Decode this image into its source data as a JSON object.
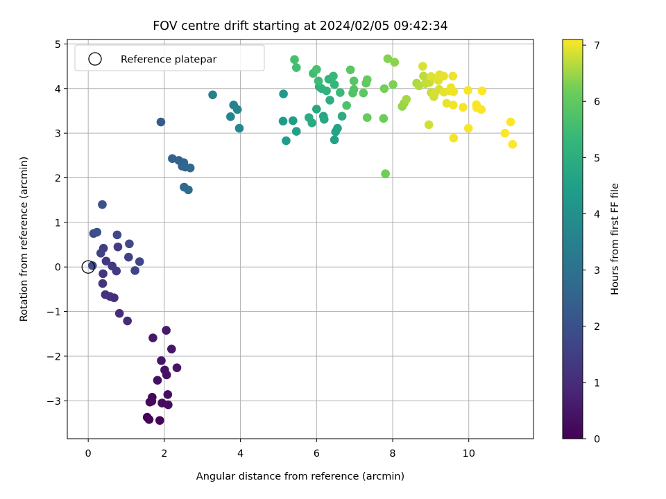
{
  "chart_data": {
    "type": "scatter",
    "title": "FOV centre drift starting at 2024/02/05 09:42:34",
    "xlabel": "Angular distance from reference (arcmin)",
    "ylabel": "Rotation from reference (arcmin)",
    "xlim": [
      -0.55,
      11.7
    ],
    "ylim": [
      -3.85,
      5.1
    ],
    "x_ticks": [
      0,
      2,
      4,
      6,
      8,
      10
    ],
    "y_ticks": [
      -3,
      -2,
      -1,
      0,
      1,
      2,
      3,
      4,
      5
    ],
    "grid": true,
    "legend": {
      "placement": "top-left",
      "entries": [
        "Reference platepar"
      ]
    },
    "reference": {
      "x": 0,
      "y": 0
    },
    "colorbar": {
      "label": "Hours from first FF file",
      "range": [
        0,
        7.1
      ],
      "ticks": [
        0,
        1,
        2,
        3,
        4,
        5,
        6,
        7
      ],
      "colormap": "viridis"
    },
    "points": [
      [
        1.55,
        -3.37,
        0.05
      ],
      [
        1.6,
        -3.42,
        0.08
      ],
      [
        1.88,
        -3.44,
        0.12
      ],
      [
        1.62,
        -3.03,
        0.15
      ],
      [
        1.68,
        -2.92,
        0.18
      ],
      [
        1.67,
        -3.01,
        0.2
      ],
      [
        1.94,
        -3.05,
        0.24
      ],
      [
        2.1,
        -3.09,
        0.27
      ],
      [
        2.09,
        -2.86,
        0.3
      ],
      [
        1.82,
        -2.54,
        0.33
      ],
      [
        2.06,
        -2.42,
        0.36
      ],
      [
        2.01,
        -2.31,
        0.4
      ],
      [
        2.33,
        -2.26,
        0.43
      ],
      [
        1.92,
        -2.1,
        0.46
      ],
      [
        2.19,
        -1.84,
        0.49
      ],
      [
        1.7,
        -1.59,
        0.52
      ],
      [
        2.05,
        -1.42,
        0.55
      ],
      [
        1.03,
        -1.21,
        0.95
      ],
      [
        0.82,
        -1.04,
        1.0
      ],
      [
        0.68,
        -0.69,
        1.05
      ],
      [
        0.57,
        -0.66,
        1.1
      ],
      [
        0.45,
        -0.62,
        1.15
      ],
      [
        0.38,
        -0.37,
        1.2
      ],
      [
        0.39,
        -0.15,
        1.25
      ],
      [
        0.47,
        0.13,
        1.3
      ],
      [
        0.63,
        0.02,
        1.35
      ],
      [
        0.74,
        -0.09,
        1.4
      ],
      [
        0.78,
        0.45,
        1.45
      ],
      [
        0.4,
        0.42,
        1.5
      ],
      [
        0.33,
        0.31,
        1.55
      ],
      [
        1.06,
        0.22,
        1.6
      ],
      [
        1.23,
        -0.08,
        1.65
      ],
      [
        1.35,
        0.12,
        1.7
      ],
      [
        0.76,
        0.72,
        1.75
      ],
      [
        1.08,
        0.52,
        1.8
      ],
      [
        0.11,
        0.03,
        1.85
      ],
      [
        0.14,
        0.75,
        1.9
      ],
      [
        0.23,
        0.78,
        1.95
      ],
      [
        0.37,
        1.4,
        2.0
      ],
      [
        1.91,
        3.25,
        2.3
      ],
      [
        2.21,
        2.43,
        2.45
      ],
      [
        2.38,
        2.39,
        2.5
      ],
      [
        2.51,
        2.34,
        2.55
      ],
      [
        2.47,
        2.26,
        2.6
      ],
      [
        2.55,
        2.24,
        2.63
      ],
      [
        2.68,
        2.22,
        2.66
      ],
      [
        2.52,
        1.79,
        2.7
      ],
      [
        2.63,
        1.73,
        2.75
      ],
      [
        3.27,
        3.86,
        3.5
      ],
      [
        3.82,
        3.63,
        3.55
      ],
      [
        3.92,
        3.53,
        3.6
      ],
      [
        3.74,
        3.37,
        3.65
      ],
      [
        3.97,
        3.11,
        3.7
      ],
      [
        5.13,
        3.88,
        4.3
      ],
      [
        5.12,
        3.27,
        4.35
      ],
      [
        5.2,
        2.83,
        4.4
      ],
      [
        5.38,
        3.28,
        4.45
      ],
      [
        5.47,
        3.04,
        4.5
      ],
      [
        6.47,
        2.85,
        4.55
      ],
      [
        6.5,
        3.03,
        4.6
      ],
      [
        6.55,
        3.11,
        4.65
      ],
      [
        6.18,
        3.38,
        4.7
      ],
      [
        6.2,
        3.31,
        4.75
      ],
      [
        6.0,
        3.54,
        4.8
      ],
      [
        5.88,
        3.23,
        4.85
      ],
      [
        5.8,
        3.35,
        4.9
      ],
      [
        6.67,
        3.38,
        4.95
      ],
      [
        6.35,
        3.74,
        5.0
      ],
      [
        6.07,
        4.04,
        5.1
      ],
      [
        6.13,
        4.0,
        5.15
      ],
      [
        6.26,
        3.95,
        5.2
      ],
      [
        6.32,
        4.21,
        5.25
      ],
      [
        6.47,
        4.09,
        5.3
      ],
      [
        6.44,
        4.28,
        5.35
      ],
      [
        6.62,
        3.91,
        5.4
      ],
      [
        6.05,
        4.17,
        5.45
      ],
      [
        5.91,
        4.34,
        5.5
      ],
      [
        5.47,
        4.47,
        5.55
      ],
      [
        5.42,
        4.65,
        5.6
      ],
      [
        6.0,
        4.43,
        5.65
      ],
      [
        6.79,
        3.62,
        5.7
      ],
      [
        6.95,
        3.9,
        5.75
      ],
      [
        6.98,
        3.98,
        5.8
      ],
      [
        6.98,
        4.17,
        5.85
      ],
      [
        6.89,
        4.42,
        5.9
      ],
      [
        7.23,
        3.9,
        5.95
      ],
      [
        7.3,
        4.12,
        6.0
      ],
      [
        7.33,
        4.2,
        6.05
      ],
      [
        7.33,
        3.35,
        6.1
      ],
      [
        7.76,
        3.33,
        6.15
      ],
      [
        7.81,
        2.09,
        6.2
      ],
      [
        7.78,
        4.0,
        6.25
      ],
      [
        8.01,
        4.09,
        6.3
      ],
      [
        7.87,
        4.67,
        6.35
      ],
      [
        8.05,
        4.59,
        6.4
      ],
      [
        8.25,
        3.6,
        6.45
      ],
      [
        8.3,
        3.67,
        6.5
      ],
      [
        8.36,
        3.76,
        6.55
      ],
      [
        8.63,
        4.12,
        6.6
      ],
      [
        8.69,
        4.06,
        6.65
      ],
      [
        8.81,
        4.28,
        6.7
      ],
      [
        8.86,
        4.11,
        6.73
      ],
      [
        8.97,
        4.14,
        6.76
      ],
      [
        9.01,
        3.91,
        6.78
      ],
      [
        9.08,
        3.82,
        6.8
      ],
      [
        8.95,
        3.19,
        6.82
      ],
      [
        9.1,
        3.88,
        6.84
      ],
      [
        9.22,
        3.98,
        6.86
      ],
      [
        8.79,
        4.5,
        6.88
      ],
      [
        9.01,
        4.27,
        6.9
      ],
      [
        9.2,
        4.18,
        6.92
      ],
      [
        9.23,
        4.31,
        6.94
      ],
      [
        9.34,
        4.28,
        6.95
      ],
      [
        9.35,
        3.92,
        6.96
      ],
      [
        9.42,
        3.67,
        6.97
      ],
      [
        9.5,
        3.95,
        6.98
      ],
      [
        9.53,
        4.02,
        6.99
      ],
      [
        9.58,
        4.28,
        7.0
      ],
      [
        9.6,
        3.93,
        7.01
      ],
      [
        9.59,
        3.63,
        7.02
      ],
      [
        9.6,
        2.89,
        7.03
      ],
      [
        9.85,
        3.58,
        7.04
      ],
      [
        9.98,
        3.96,
        7.05
      ],
      [
        9.99,
        3.11,
        7.06
      ],
      [
        10.21,
        3.57,
        7.07
      ],
      [
        10.2,
        3.64,
        7.08
      ],
      [
        10.33,
        3.53,
        7.08
      ],
      [
        10.35,
        3.95,
        7.09
      ],
      [
        10.95,
        3.0,
        7.09
      ],
      [
        11.1,
        3.25,
        7.1
      ],
      [
        11.15,
        2.75,
        7.1
      ]
    ]
  }
}
